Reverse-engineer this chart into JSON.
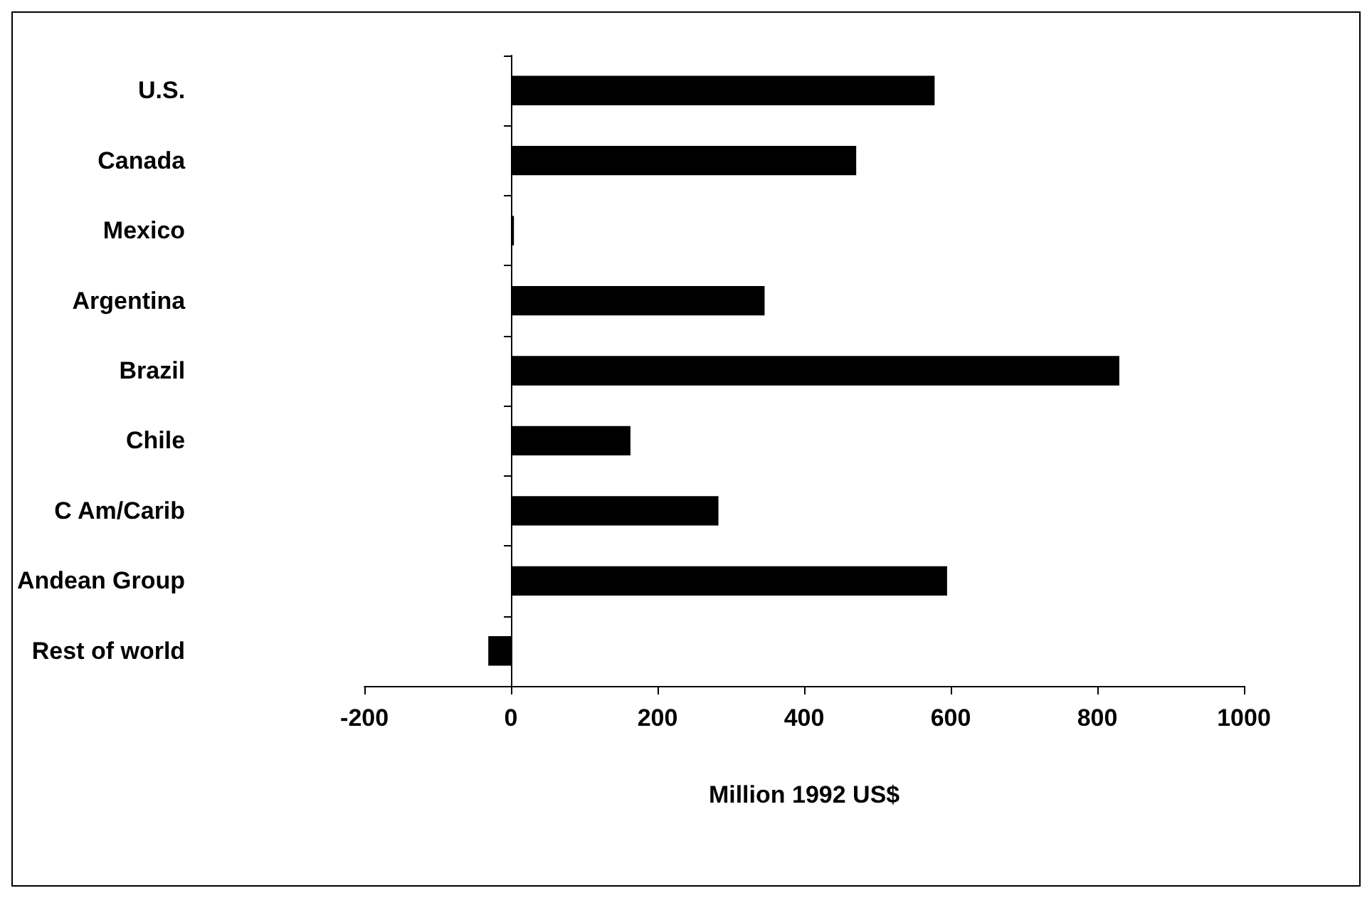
{
  "chart_data": {
    "type": "bar",
    "orientation": "horizontal",
    "xlabel": "Million 1992 US$",
    "categories": [
      "U.S.",
      "Canada",
      "Mexico",
      "Argentina",
      "Brazil",
      "Chile",
      "C Am/Carib",
      "Andean Group",
      "Rest of world"
    ],
    "values": [
      578,
      471,
      4,
      346,
      830,
      163,
      283,
      595,
      -31
    ],
    "color": "#000000",
    "xlim": [
      -200,
      1000
    ],
    "xticks": [
      -200,
      0,
      200,
      400,
      600,
      800,
      1000
    ]
  }
}
